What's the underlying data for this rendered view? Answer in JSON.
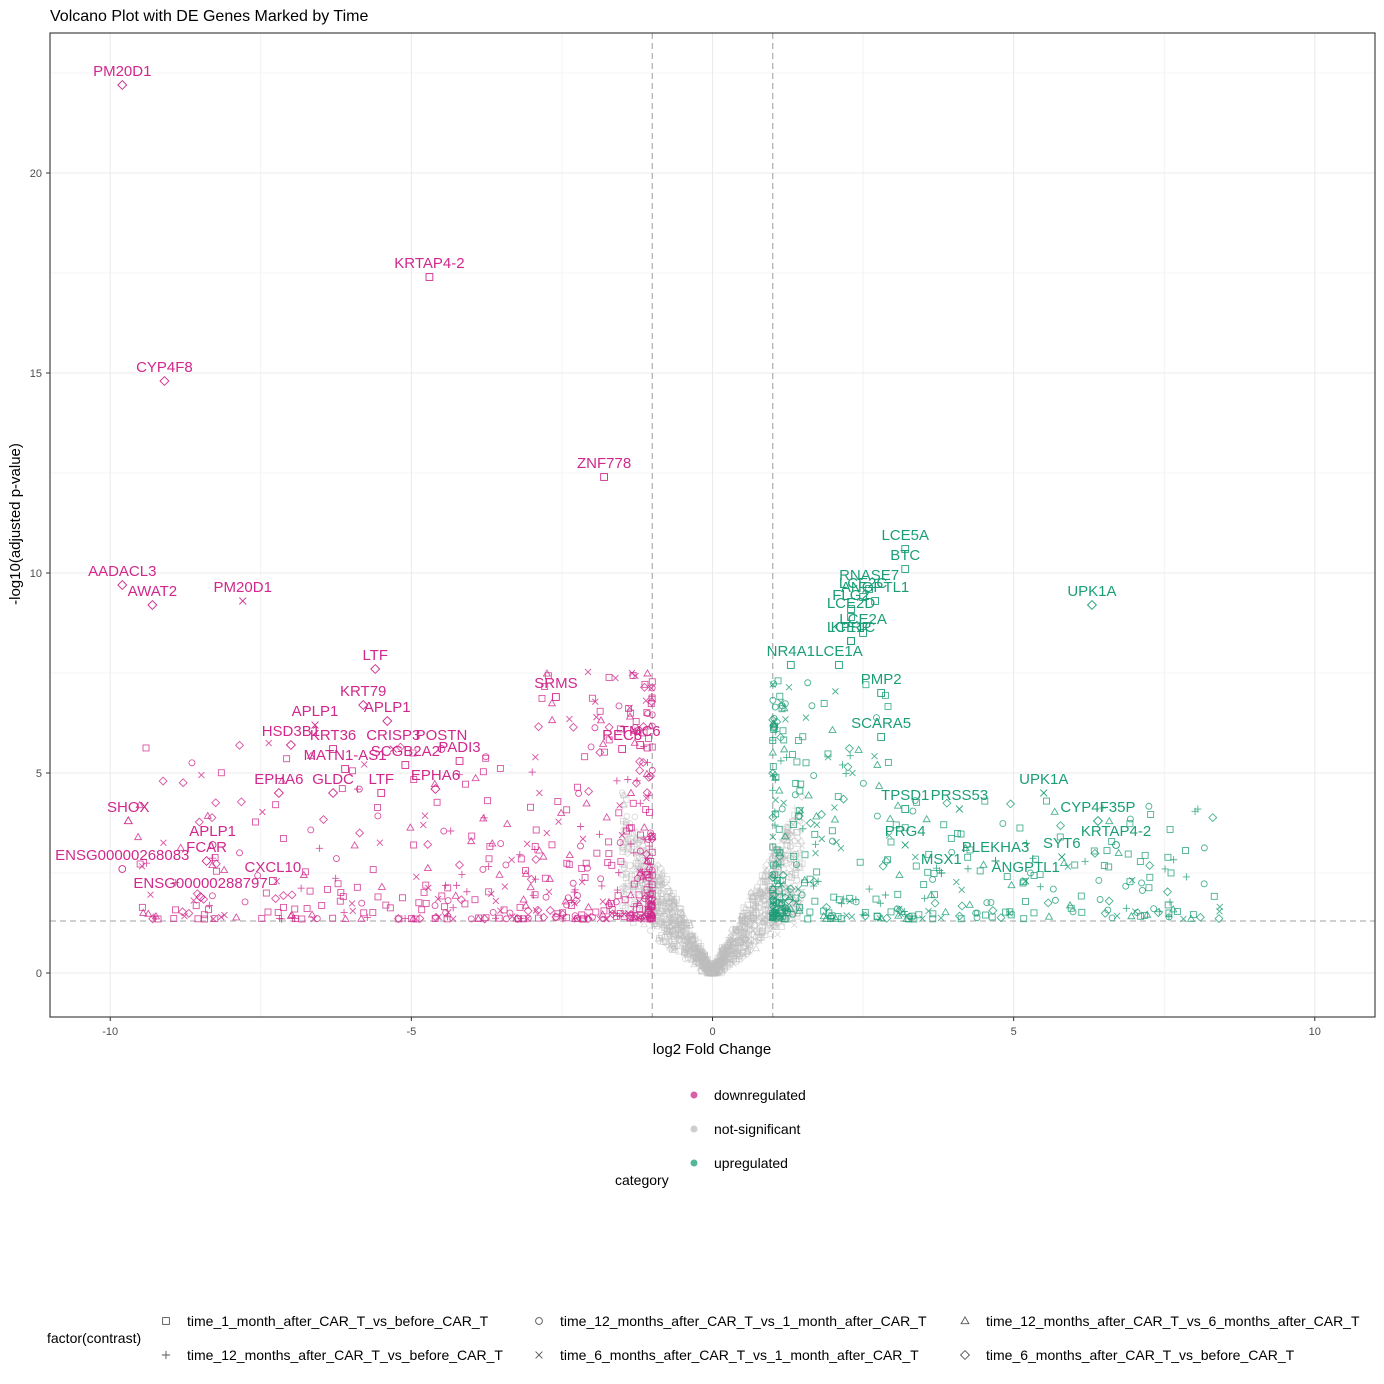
{
  "chart_data": {
    "type": "scatter",
    "title": "Volcano Plot with DE Genes Marked by Time",
    "xlabel": "log2 Fold Change",
    "ylabel": "-log10(adjusted p-value)",
    "xlim": [
      -11,
      11
    ],
    "ylim": [
      -1.1,
      23.5
    ],
    "x_ticks": [
      -10,
      -5,
      0,
      5,
      10
    ],
    "x_tick_labels": [
      "-10",
      "-5",
      "0",
      "5",
      "10"
    ],
    "y_ticks": [
      0,
      5,
      10,
      15,
      20
    ],
    "y_tick_labels": [
      "0",
      "5",
      "10",
      "15",
      "20"
    ],
    "thresholds": {
      "log2fc": [
        -1,
        1
      ],
      "neg_log10_padj": 1.3
    },
    "colors": {
      "downregulated": "#d0288c",
      "not-significant": "#bdbdbd",
      "upregulated": "#1b9e77"
    },
    "color_legend": {
      "title": "category",
      "items": [
        "downregulated",
        "not-significant",
        "upregulated"
      ]
    },
    "shape_legend": {
      "title": "factor(contrast)",
      "items": [
        {
          "label": "time_1_month_after_CAR_T_vs_before_CAR_T",
          "shape": "square"
        },
        {
          "label": "time_12_months_after_CAR_T_vs_before_CAR_T",
          "shape": "plus"
        },
        {
          "label": "time_12_months_after_CAR_T_vs_1_month_after_CAR_T",
          "shape": "circle"
        },
        {
          "label": "time_6_months_after_CAR_T_vs_1_month_after_CAR_T",
          "shape": "cross"
        },
        {
          "label": "time_12_months_after_CAR_T_vs_6_months_after_CAR_T",
          "shape": "triangle"
        },
        {
          "label": "time_6_months_after_CAR_T_vs_before_CAR_T",
          "shape": "diamond"
        }
      ]
    },
    "labeled_genes": [
      {
        "gene": "PM20D1",
        "x": -9.8,
        "y": 22.2,
        "shape": "diamond",
        "category": "downregulated"
      },
      {
        "gene": "KRTAP4-2",
        "x": -4.7,
        "y": 17.4,
        "shape": "square",
        "category": "downregulated"
      },
      {
        "gene": "CYP4F8",
        "x": -9.1,
        "y": 14.8,
        "shape": "diamond",
        "category": "downregulated"
      },
      {
        "gene": "ZNF778",
        "x": -1.8,
        "y": 12.4,
        "shape": "square",
        "category": "downregulated"
      },
      {
        "gene": "AADACL3",
        "x": -9.8,
        "y": 9.7,
        "shape": "diamond",
        "category": "downregulated"
      },
      {
        "gene": "PM20D1",
        "x": -7.8,
        "y": 9.3,
        "shape": "cross",
        "category": "downregulated"
      },
      {
        "gene": "AWAT2",
        "x": -9.3,
        "y": 9.2,
        "shape": "diamond",
        "category": "downregulated"
      },
      {
        "gene": "LTF",
        "x": -5.6,
        "y": 7.6,
        "shape": "diamond",
        "category": "downregulated"
      },
      {
        "gene": "KRT79",
        "x": -5.8,
        "y": 6.7,
        "shape": "diamond",
        "category": "downregulated"
      },
      {
        "gene": "APLP1",
        "x": -6.6,
        "y": 6.2,
        "shape": "cross",
        "category": "downregulated"
      },
      {
        "gene": "APLP1",
        "x": -5.4,
        "y": 6.3,
        "shape": "diamond",
        "category": "downregulated"
      },
      {
        "gene": "SRMS",
        "x": -2.6,
        "y": 6.9,
        "shape": "square",
        "category": "downregulated"
      },
      {
        "gene": "HSD3B1",
        "x": -7.0,
        "y": 5.7,
        "shape": "diamond",
        "category": "downregulated"
      },
      {
        "gene": "KRT36",
        "x": -6.3,
        "y": 5.6,
        "shape": "square",
        "category": "downregulated"
      },
      {
        "gene": "CRISP3",
        "x": -5.3,
        "y": 5.6,
        "shape": "cross",
        "category": "downregulated"
      },
      {
        "gene": "POSTN",
        "x": -4.5,
        "y": 5.6,
        "shape": "circle",
        "category": "downregulated"
      },
      {
        "gene": "REC8",
        "x": -1.5,
        "y": 5.6,
        "shape": "square",
        "category": "downregulated"
      },
      {
        "gene": "TMC6",
        "x": -1.2,
        "y": 5.7,
        "shape": "square",
        "category": "downregulated"
      },
      {
        "gene": "MATN1-AS1",
        "x": -6.1,
        "y": 5.1,
        "shape": "square",
        "category": "downregulated"
      },
      {
        "gene": "SCGB2A2",
        "x": -5.1,
        "y": 5.2,
        "shape": "square",
        "category": "downregulated"
      },
      {
        "gene": "PADI3",
        "x": -4.2,
        "y": 5.3,
        "shape": "square",
        "category": "downregulated"
      },
      {
        "gene": "SHOX",
        "x": -9.7,
        "y": 3.8,
        "shape": "triangle",
        "category": "downregulated"
      },
      {
        "gene": "EPHA6",
        "x": -7.2,
        "y": 4.5,
        "shape": "diamond",
        "category": "downregulated"
      },
      {
        "gene": "GLDC",
        "x": -6.3,
        "y": 4.5,
        "shape": "diamond",
        "category": "downregulated"
      },
      {
        "gene": "LTF",
        "x": -5.5,
        "y": 4.5,
        "shape": "square",
        "category": "downregulated"
      },
      {
        "gene": "EPHA6",
        "x": -4.6,
        "y": 4.6,
        "shape": "diamond",
        "category": "downregulated"
      },
      {
        "gene": "APLP1",
        "x": -8.3,
        "y": 3.2,
        "shape": "circle",
        "category": "downregulated"
      },
      {
        "gene": "ENSG00000268083",
        "x": -9.8,
        "y": 2.6,
        "shape": "circle",
        "category": "downregulated"
      },
      {
        "gene": "FCAR",
        "x": -8.4,
        "y": 2.8,
        "shape": "diamond",
        "category": "downregulated"
      },
      {
        "gene": "CXCL10",
        "x": -7.3,
        "y": 2.3,
        "shape": "square",
        "category": "downregulated"
      },
      {
        "gene": "ENSG00000288797",
        "x": -8.5,
        "y": 1.9,
        "shape": "diamond",
        "category": "downregulated"
      },
      {
        "gene": "LCE5A",
        "x": 3.2,
        "y": 10.6,
        "shape": "square",
        "category": "upregulated"
      },
      {
        "gene": "BTC",
        "x": 3.2,
        "y": 10.1,
        "shape": "square",
        "category": "upregulated"
      },
      {
        "gene": "RNASE7",
        "x": 2.6,
        "y": 9.6,
        "shape": "square",
        "category": "upregulated"
      },
      {
        "gene": "LCE2C",
        "x": 2.5,
        "y": 9.4,
        "shape": "square",
        "category": "upregulated"
      },
      {
        "gene": "FLG2",
        "x": 2.3,
        "y": 9.1,
        "shape": "square",
        "category": "upregulated"
      },
      {
        "gene": "ANGPTL1",
        "x": 2.7,
        "y": 9.3,
        "shape": "square",
        "category": "upregulated"
      },
      {
        "gene": "UPK1A",
        "x": 6.3,
        "y": 9.2,
        "shape": "diamond",
        "category": "upregulated"
      },
      {
        "gene": "LCE2D",
        "x": 2.3,
        "y": 8.9,
        "shape": "square",
        "category": "upregulated"
      },
      {
        "gene": "LCE2A",
        "x": 2.5,
        "y": 8.5,
        "shape": "square",
        "category": "upregulated"
      },
      {
        "gene": "LCE1C",
        "x": 2.3,
        "y": 8.3,
        "shape": "square",
        "category": "upregulated"
      },
      {
        "gene": "KPRP",
        "x": 2.3,
        "y": 8.3,
        "shape": "square",
        "category": "upregulated"
      },
      {
        "gene": "NR4A1",
        "x": 1.3,
        "y": 7.7,
        "shape": "square",
        "category": "upregulated"
      },
      {
        "gene": "LCE1A",
        "x": 2.1,
        "y": 7.7,
        "shape": "square",
        "category": "upregulated"
      },
      {
        "gene": "PMP2",
        "x": 2.8,
        "y": 7.0,
        "shape": "square",
        "category": "upregulated"
      },
      {
        "gene": "SCARA5",
        "x": 2.8,
        "y": 5.9,
        "shape": "square",
        "category": "upregulated"
      },
      {
        "gene": "UPK1A",
        "x": 5.5,
        "y": 4.5,
        "shape": "cross",
        "category": "upregulated"
      },
      {
        "gene": "PRSS53",
        "x": 4.1,
        "y": 4.1,
        "shape": "cross",
        "category": "upregulated"
      },
      {
        "gene": "CYP4F35P",
        "x": 6.4,
        "y": 3.8,
        "shape": "diamond",
        "category": "upregulated"
      },
      {
        "gene": "TPSD1",
        "x": 3.2,
        "y": 4.1,
        "shape": "square",
        "category": "upregulated"
      },
      {
        "gene": "KRTAP4-2",
        "x": 6.7,
        "y": 3.2,
        "shape": "circle",
        "category": "upregulated"
      },
      {
        "gene": "PRG4",
        "x": 3.2,
        "y": 3.2,
        "shape": "cross",
        "category": "upregulated"
      },
      {
        "gene": "PLEKHA3",
        "x": 4.7,
        "y": 2.8,
        "shape": "plus",
        "category": "upregulated"
      },
      {
        "gene": "SYT6",
        "x": 5.8,
        "y": 2.9,
        "shape": "cross",
        "category": "upregulated"
      },
      {
        "gene": "MSX1",
        "x": 3.8,
        "y": 2.5,
        "shape": "plus",
        "category": "upregulated"
      },
      {
        "gene": "ANGPTL1",
        "x": 5.2,
        "y": 2.3,
        "shape": "cross",
        "category": "upregulated"
      }
    ]
  }
}
